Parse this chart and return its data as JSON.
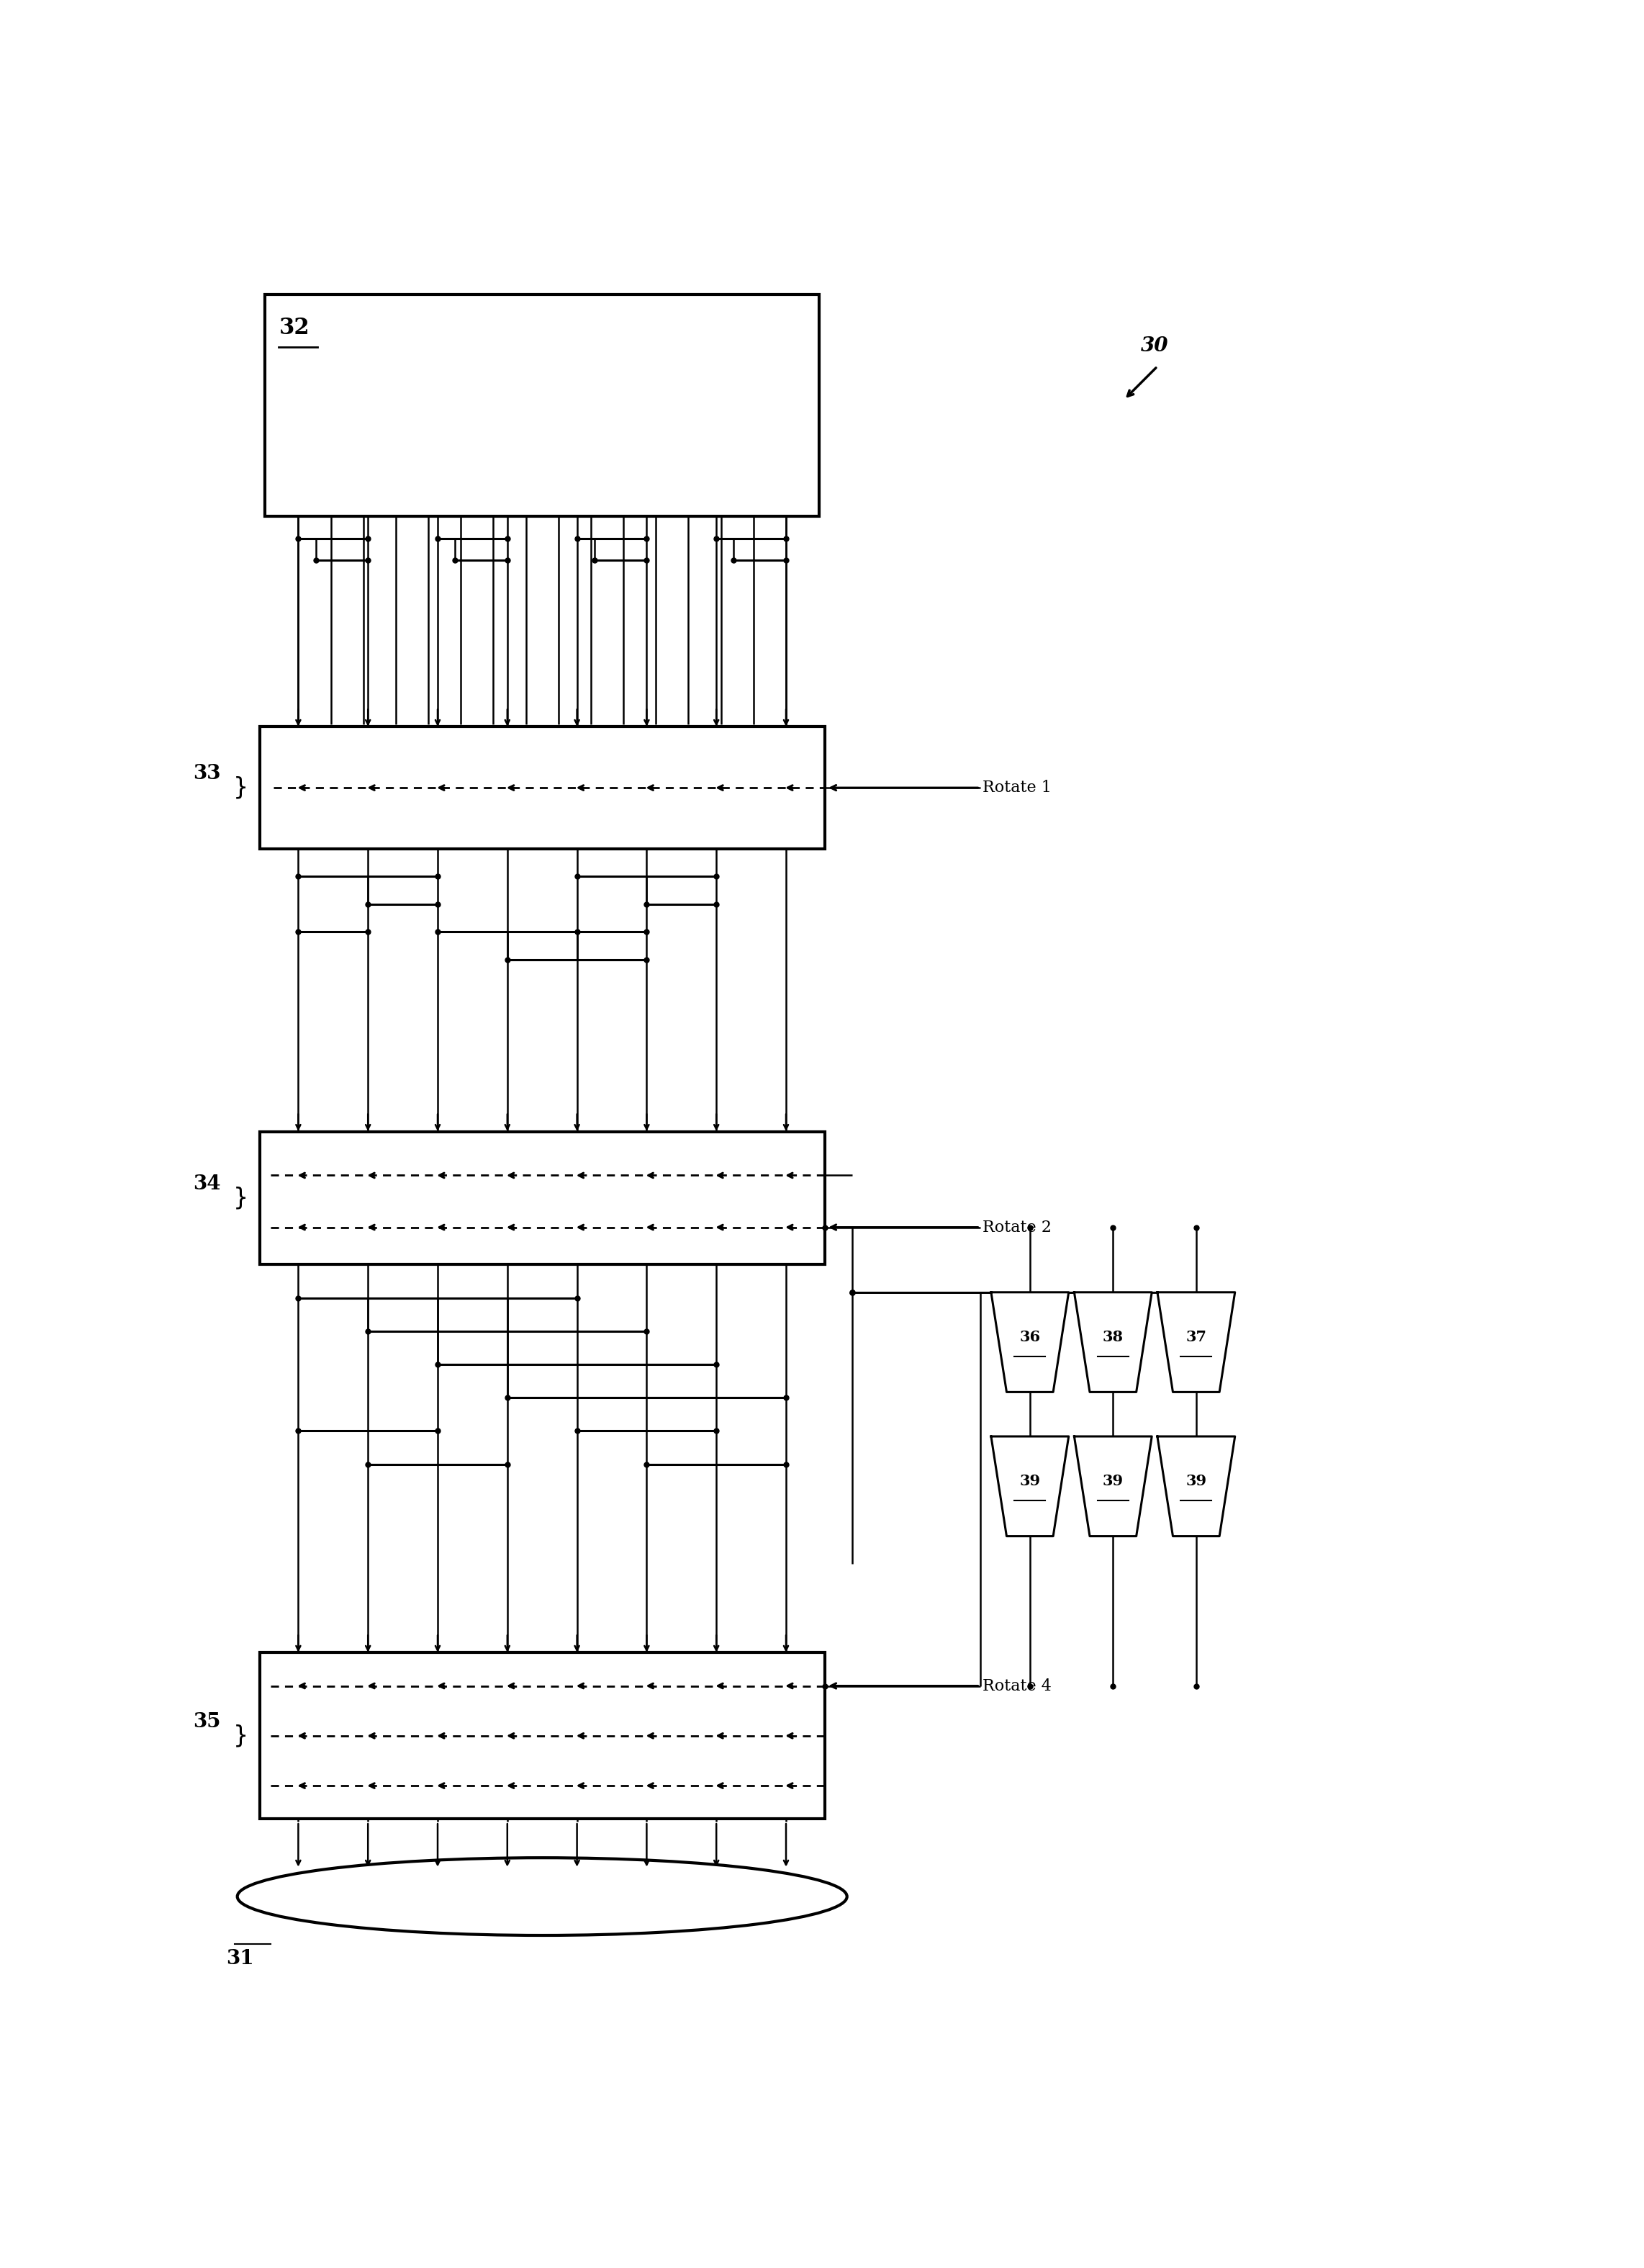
{
  "fig_width": 22.84,
  "fig_height": 31.5,
  "bg_color": "#ffffff",
  "line_color": "#000000",
  "label_32": "32",
  "label_30": "30",
  "label_33": "33",
  "label_34": "34",
  "label_35": "35",
  "label_31": "31",
  "rotate1_label": "Rotate 1",
  "rotate2_label": "Rotate 2",
  "rotate4_label": "Rotate 4",
  "mux_labels_top": [
    "36",
    "38",
    "37"
  ],
  "mux_labels_bot": [
    "39",
    "39",
    "39"
  ],
  "num_cols": 16
}
